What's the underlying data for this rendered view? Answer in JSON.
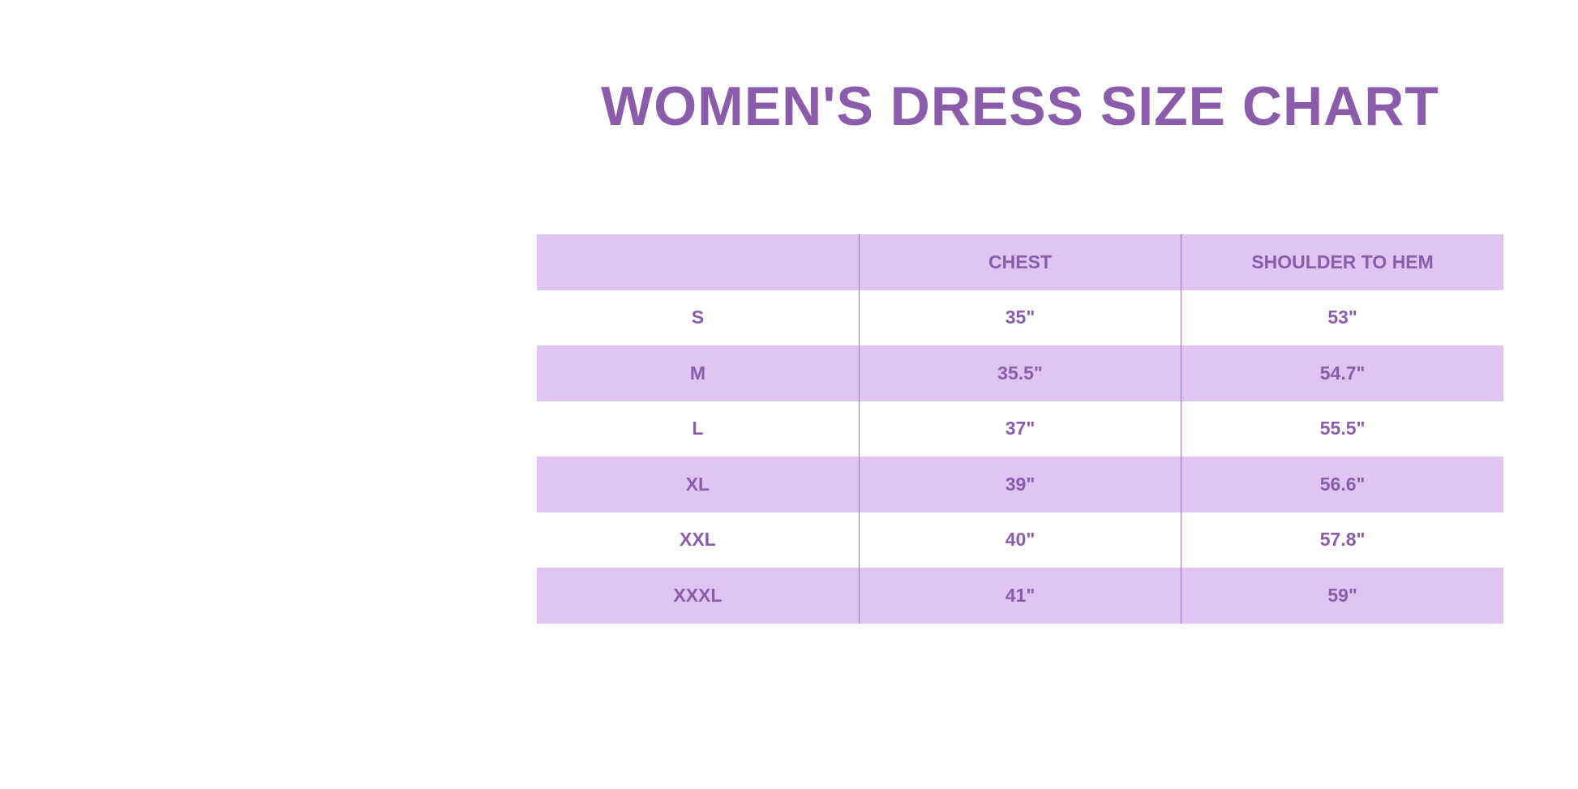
{
  "title": "WOMEN'S DRESS SIZE CHART",
  "colors": {
    "text": "#8a5cab",
    "row_shade": "#e0c5f3"
  },
  "table": {
    "headers": [
      "",
      "CHEST",
      "SHOULDER TO HEM"
    ],
    "rows": [
      [
        "S",
        "35\"",
        "53\""
      ],
      [
        "M",
        "35.5\"",
        "54.7\""
      ],
      [
        "L",
        "37\"",
        "55.5\""
      ],
      [
        "XL",
        "39\"",
        "56.6\""
      ],
      [
        "XXL",
        "40\"",
        "57.8\""
      ],
      [
        "XXXL",
        "41\"",
        "59\""
      ]
    ]
  }
}
